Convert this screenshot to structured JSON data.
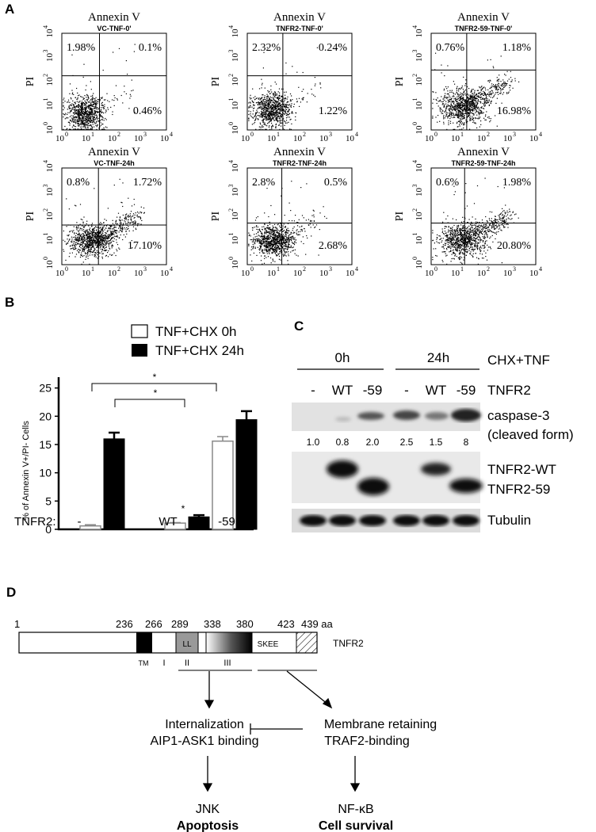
{
  "panels": {
    "a": "A",
    "b": "B",
    "c": "C",
    "d": "D"
  },
  "facs": [
    {
      "title": "Annexin V",
      "sample": "VC-TNF-0'",
      "ul": "1.98%",
      "ur": "0.1%",
      "lr": "0.46%",
      "y_axis": "PI",
      "xticks": [
        "10",
        "10",
        "10",
        "10",
        "10"
      ],
      "xexp": [
        "0",
        "1",
        "2",
        "3",
        "4"
      ],
      "yticks": [
        "10",
        "10",
        "10",
        "10",
        "10"
      ],
      "yexp": [
        "0",
        "1",
        "2",
        "3",
        "4"
      ]
    },
    {
      "title": "Annexin V",
      "sample": "TNFR2-TNF-0'",
      "ul": "2.32%",
      "ur": "0.24%",
      "lr": "1.22%",
      "y_axis": "PI",
      "xticks": [
        "10",
        "10",
        "10",
        "10",
        "10"
      ],
      "xexp": [
        "0",
        "1",
        "2",
        "3",
        "4"
      ],
      "yticks": [
        "10",
        "10",
        "10",
        "10",
        "10"
      ],
      "yexp": [
        "0",
        "1",
        "2",
        "3",
        "4"
      ]
    },
    {
      "title": "Annexin V",
      "sample": "TNFR2-59-TNF-0'",
      "ul": "0.76%",
      "ur": "1.18%",
      "lr": "16.98%",
      "y_axis": "PI",
      "xticks": [
        "10",
        "10",
        "10",
        "10",
        "10"
      ],
      "xexp": [
        "0",
        "1",
        "2",
        "3",
        "4"
      ],
      "yticks": [
        "10",
        "10",
        "10",
        "10",
        "10"
      ],
      "yexp": [
        "0",
        "1",
        "2",
        "3",
        "4"
      ]
    },
    {
      "title": "Annexin V",
      "sample": "VC-TNF-24h",
      "ul": "0.8%",
      "ur": "1.72%",
      "lr": "17.10%",
      "y_axis": "PI",
      "xticks": [
        "10",
        "10",
        "10",
        "10",
        "10"
      ],
      "xexp": [
        "0",
        "1",
        "2",
        "3",
        "4"
      ],
      "yticks": [
        "10",
        "10",
        "10",
        "10",
        "10"
      ],
      "yexp": [
        "0",
        "1",
        "2",
        "3",
        "4"
      ]
    },
    {
      "title": "Annexin V",
      "sample": "TNFR2-TNF-24h",
      "ul": "2.8%",
      "ur": "0.5%",
      "lr": "2.68%",
      "y_axis": "PI",
      "xticks": [
        "10",
        "10",
        "10",
        "10",
        "10"
      ],
      "xexp": [
        "0",
        "1",
        "2",
        "3",
        "4"
      ],
      "yticks": [
        "10",
        "10",
        "10",
        "10",
        "10"
      ],
      "yexp": [
        "0",
        "1",
        "2",
        "3",
        "4"
      ]
    },
    {
      "title": "Annexin V",
      "sample": "TNFR2-59-TNF-24h",
      "ul": "0.6%",
      "ur": "1.98%",
      "lr": "20.80%",
      "y_axis": "PI",
      "xticks": [
        "10",
        "10",
        "10",
        "10",
        "10"
      ],
      "xexp": [
        "0",
        "1",
        "2",
        "3",
        "4"
      ],
      "yticks": [
        "10",
        "10",
        "10",
        "10",
        "10"
      ],
      "yexp": [
        "0",
        "1",
        "2",
        "3",
        "4"
      ]
    }
  ],
  "chart_data": {
    "type": "bar",
    "ylabel": "% of Annexin V+/PI- Cells",
    "xlabel_prefix": "TNFR2:",
    "categories": [
      "-",
      "WT",
      "-59"
    ],
    "ylim": [
      0,
      25
    ],
    "yticks": [
      "0",
      "5",
      "10",
      "15",
      "20",
      "25"
    ],
    "series": [
      {
        "name": "TNF+CHX 0h",
        "values": [
          0.6,
          1.1,
          15.6
        ],
        "errors": [
          0.2,
          0.1,
          0.8
        ],
        "color": "#ffffff"
      },
      {
        "name": "TNF+CHX 24h",
        "values": [
          16.0,
          2.2,
          19.4
        ],
        "errors": [
          1.1,
          0.3,
          1.5
        ],
        "color": "#000000"
      }
    ],
    "annotations": [
      "*",
      "*",
      "*"
    ]
  },
  "blot": {
    "times": [
      "0h",
      "24h"
    ],
    "treatment": "CHX+TNF",
    "lanes": [
      "-",
      "WT",
      "-59",
      "-",
      "WT",
      "-59"
    ],
    "lane_row_label": "TNFR2",
    "caspase_label_1": "caspase-3",
    "caspase_label_2": "(cleaved form)",
    "quant": [
      "1.0",
      "0.8",
      "2.0",
      "2.5",
      "1.5",
      "8"
    ],
    "tnfr2_wt_label": "TNFR2-WT",
    "tnfr2_59_label": "TNFR2-59",
    "tubulin_label": "Tubulin"
  },
  "diagram": {
    "positions": [
      "1",
      "236",
      "266",
      "289",
      "338",
      "380",
      "423",
      "439 aa"
    ],
    "protein": "TNFR2",
    "domains": {
      "tm": "TM",
      "i": "I",
      "ll": "LL",
      "ii": "II",
      "iii": "III",
      "skee": "SKEE"
    },
    "left_box_1": "Internalization",
    "left_box_2": "AIP1-ASK1 binding",
    "right_box_1": "Membrane retaining",
    "right_box_2": "TRAF2-binding",
    "left_outcome_1": "JNK",
    "left_outcome_2": "Apoptosis",
    "right_outcome_1": "NF-κB",
    "right_outcome_2": "Cell survival"
  }
}
